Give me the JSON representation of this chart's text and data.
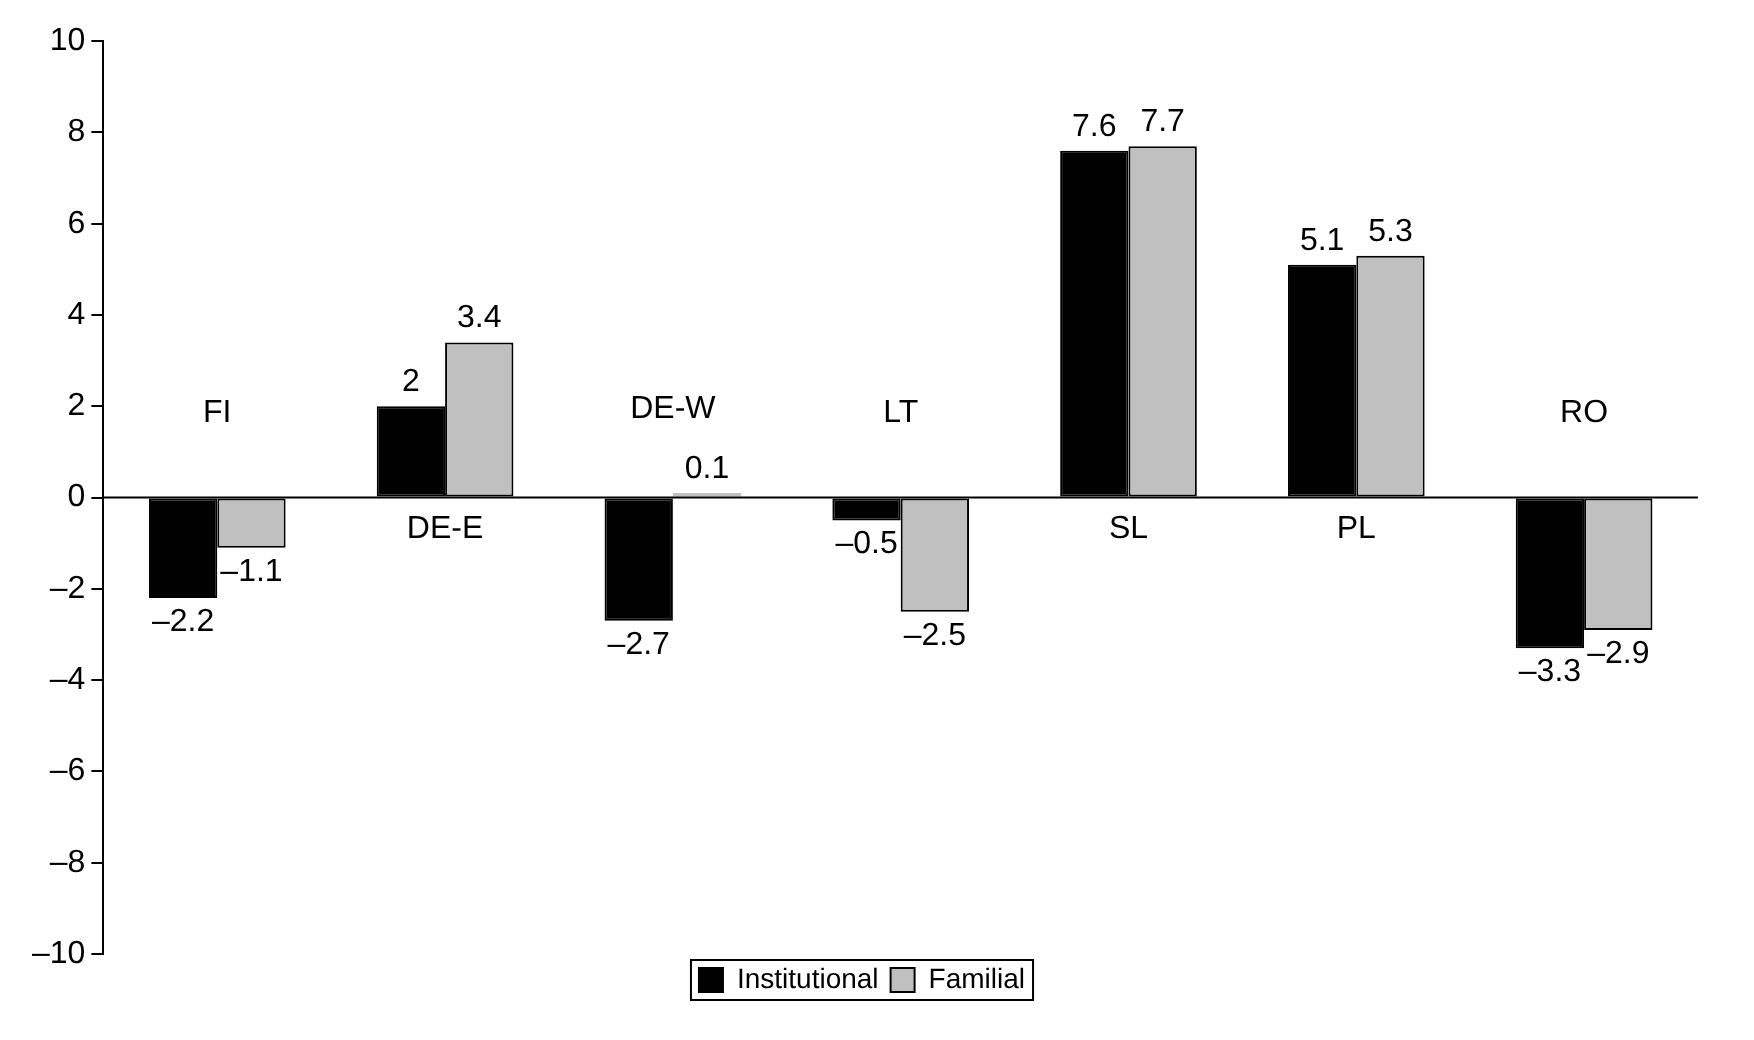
{
  "chart_data": {
    "type": "bar",
    "categories": [
      "FI",
      "DE-E",
      "DE-W",
      "LT",
      "SL",
      "PL",
      "RO"
    ],
    "series": [
      {
        "name": "Institutional",
        "color": "#000000",
        "values": [
          -2.2,
          2,
          -2.7,
          -0.5,
          7.6,
          5.1,
          -3.3
        ],
        "value_labels": [
          "–2.2",
          "2",
          "–2.7",
          "–0.5",
          "7.6",
          "5.1",
          "–3.3"
        ]
      },
      {
        "name": "Familial",
        "color": "#c0c0c0",
        "values": [
          -1.1,
          3.4,
          0.1,
          -2.5,
          7.7,
          5.3,
          -2.9
        ],
        "value_labels": [
          "–1.1",
          "3.4",
          "0.1",
          "–2.5",
          "7.7",
          "5.3",
          "–2.9"
        ]
      }
    ],
    "ylim": [
      -10,
      10
    ],
    "yticks": [
      {
        "value": -10,
        "label": "–10"
      },
      {
        "value": -8,
        "label": "–8"
      },
      {
        "value": -6,
        "label": "–6"
      },
      {
        "value": -4,
        "label": "–4"
      },
      {
        "value": -2,
        "label": "–2"
      },
      0,
      2,
      4,
      6,
      8,
      10
    ],
    "grid": false,
    "legend": "bottom"
  }
}
